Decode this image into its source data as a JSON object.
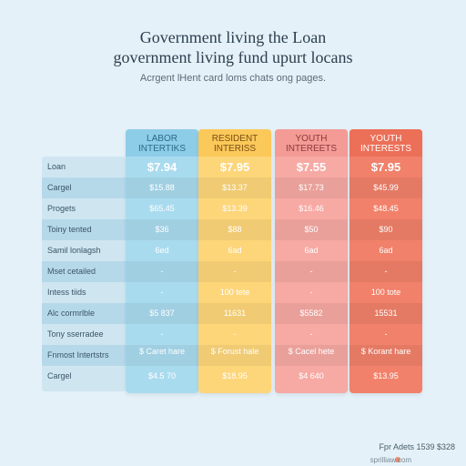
{
  "header": {
    "title_line1": "Government living the Loan",
    "title_line2": "government living fund upurt locans",
    "subtitle": "Acrgent lHent card loms chats ong pages."
  },
  "columns": [
    {
      "header": "LABOR INTERTIKS",
      "color": "#a9dbef",
      "head_color": "#8ecde8",
      "text_color": "#2b6a88"
    },
    {
      "header": "RESIDENT INTERISS",
      "color": "#fdd67a",
      "head_color": "#fbc85a",
      "text_color": "#7a4e10"
    },
    {
      "header": "YOUTH INTEREETS",
      "color": "#f7a9a3",
      "head_color": "#f49b96",
      "text_color": "#8a3a38"
    },
    {
      "header": "YOUTH INTERESTS",
      "color": "#f1816a",
      "head_color": "#ec6f57",
      "text_color": "#ffffff"
    }
  ],
  "rows": [
    {
      "label": "Loan",
      "values": [
        "$7.94",
        "$7.95",
        "$7.55",
        "$7.95"
      ],
      "big": true
    },
    {
      "label": "Cargel",
      "values": [
        "$15.88",
        "$13.37",
        "$17.73",
        "$45.99"
      ]
    },
    {
      "label": "Progets",
      "values": [
        "$65.45",
        "$13.39",
        "$16.46",
        "$48.45"
      ]
    },
    {
      "label": "Toiny tented",
      "values": [
        "$36",
        "$88",
        "$50",
        "$90"
      ]
    },
    {
      "label": "Samil lonlagsh",
      "values": [
        "6ed",
        "6ad",
        "6ad",
        "6ad"
      ]
    },
    {
      "label": "Mset cetailed",
      "values": [
        "-",
        "-",
        "-",
        "-"
      ]
    },
    {
      "label": "Intess tiids",
      "values": [
        "-",
        "100 tete",
        "-",
        "100 tote"
      ]
    },
    {
      "label": "Alc cormrlble",
      "values": [
        "$5 837",
        "11631",
        "$5582",
        "15531"
      ]
    },
    {
      "label": "Tony sserradee",
      "values": [
        "-",
        "-",
        "-",
        "-"
      ]
    },
    {
      "label": "Fnmost Intertstrs",
      "values": [
        "$ Caret hare",
        "$ Forust hale",
        "$ Cacel hete",
        "$ Korant hare"
      ],
      "two_line": true
    },
    {
      "label": "Cargel",
      "values": [
        "$4.5 70",
        "$18.95",
        "$4 640",
        "$13.95"
      ]
    }
  ],
  "footer": {
    "text": "Fpr Adets 1539 $328",
    "corner": "sprilliaw.com"
  }
}
